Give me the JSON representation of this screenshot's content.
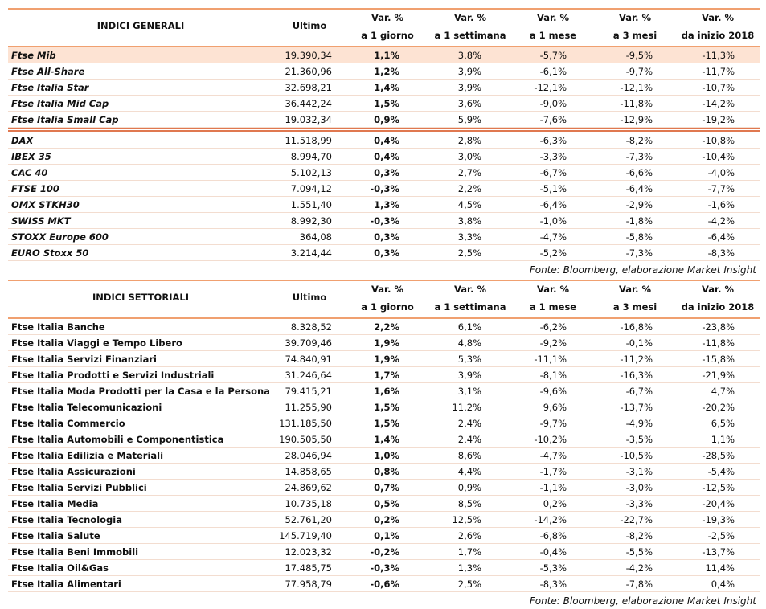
{
  "tables": [
    {
      "header": [
        [
          "INDICI GENERALI"
        ],
        [
          "Ultimo"
        ],
        [
          "Var. %",
          "a 1 giorno"
        ],
        [
          "Var. %",
          "a 1 settimana"
        ],
        [
          "Var. %",
          "a 1 mese"
        ],
        [
          "Var. %",
          "a 3 mesi"
        ],
        [
          "Var. %",
          "da inizio 2018"
        ]
      ],
      "sections": [
        [
          [
            "Ftse Mib",
            "19.390,34",
            "1,1%",
            "3,8%",
            "-5,7%",
            "-9,5%",
            "-11,3%"
          ],
          [
            "Ftse All-Share",
            "21.360,96",
            "1,2%",
            "3,9%",
            "-6,1%",
            "-9,7%",
            "-11,7%"
          ],
          [
            "Ftse Italia Star",
            "32.698,21",
            "1,4%",
            "3,9%",
            "-12,1%",
            "-12,1%",
            "-10,7%"
          ],
          [
            "Ftse Italia Mid Cap",
            "36.442,24",
            "1,5%",
            "3,6%",
            "-9,0%",
            "-11,8%",
            "-14,2%"
          ],
          [
            "Ftse Italia Small Cap",
            "19.032,34",
            "0,9%",
            "5,9%",
            "-7,6%",
            "-12,9%",
            "-19,2%"
          ]
        ],
        [
          [
            "DAX",
            "11.518,99",
            "0,4%",
            "2,8%",
            "-6,3%",
            "-8,2%",
            "-10,8%"
          ],
          [
            "IBEX 35",
            "8.994,70",
            "0,4%",
            "3,0%",
            "-3,3%",
            "-7,3%",
            "-10,4%"
          ],
          [
            "CAC 40",
            "5.102,13",
            "0,3%",
            "2,7%",
            "-6,7%",
            "-6,6%",
            "-4,0%"
          ],
          [
            "FTSE 100",
            "7.094,12",
            "-0,3%",
            "2,2%",
            "-5,1%",
            "-6,4%",
            "-7,7%"
          ],
          [
            "OMX STKH30",
            "1.551,40",
            "1,3%",
            "4,5%",
            "-6,4%",
            "-2,9%",
            "-1,6%"
          ],
          [
            "SWISS MKT",
            "8.992,30",
            "-0,3%",
            "3,8%",
            "-1,0%",
            "-1,8%",
            "-4,2%"
          ],
          [
            "STOXX Europe 600",
            "364,08",
            "0,3%",
            "3,3%",
            "-4,7%",
            "-5,8%",
            "-6,4%"
          ],
          [
            "EURO Stoxx 50",
            "3.214,44",
            "0,3%",
            "2,5%",
            "-5,2%",
            "-7,3%",
            "-8,3%"
          ]
        ]
      ],
      "source": "Fonte: Bloomberg, elaborazione Market Insight"
    },
    {
      "header": [
        [
          "INDICI SETTORIALI"
        ],
        [
          "Ultimo"
        ],
        [
          "Var. %",
          "a 1 giorno"
        ],
        [
          "Var. %",
          "a 1 settimana"
        ],
        [
          "Var. %",
          "a 1 mese"
        ],
        [
          "Var. %",
          "a 3 mesi"
        ],
        [
          "Var. %",
          "da inizio 2018"
        ]
      ],
      "sections": [
        [
          [
            "Ftse Italia Banche",
            "8.328,52",
            "2,2%",
            "6,1%",
            "-6,2%",
            "-16,8%",
            "-23,8%"
          ],
          [
            "Ftse Italia Viaggi e Tempo Libero",
            "39.709,46",
            "1,9%",
            "4,8%",
            "-9,2%",
            "-0,1%",
            "-11,8%"
          ],
          [
            "Ftse Italia Servizi Finanziari",
            "74.840,91",
            "1,9%",
            "5,3%",
            "-11,1%",
            "-11,2%",
            "-15,8%"
          ],
          [
            "Ftse Italia Prodotti e Servizi Industriali",
            "31.246,64",
            "1,7%",
            "3,9%",
            "-8,1%",
            "-16,3%",
            "-21,9%"
          ],
          [
            "Ftse Italia Moda Prodotti per la Casa e la Persona",
            "79.415,21",
            "1,6%",
            "3,1%",
            "-9,6%",
            "-6,7%",
            "4,7%"
          ],
          [
            "Ftse Italia Telecomunicazioni",
            "11.255,90",
            "1,5%",
            "11,2%",
            "9,6%",
            "-13,7%",
            "-20,2%"
          ],
          [
            "Ftse Italia Commercio",
            "131.185,50",
            "1,5%",
            "2,4%",
            "-9,7%",
            "-4,9%",
            "6,5%"
          ],
          [
            "Ftse Italia Automobili e Componentistica",
            "190.505,50",
            "1,4%",
            "2,4%",
            "-10,2%",
            "-3,5%",
            "1,1%"
          ],
          [
            "Ftse Italia Edilizia e Materiali",
            "28.046,94",
            "1,0%",
            "8,6%",
            "-4,7%",
            "-10,5%",
            "-28,5%"
          ],
          [
            "Ftse Italia Assicurazioni",
            "14.858,65",
            "0,8%",
            "4,4%",
            "-1,7%",
            "-3,1%",
            "-5,4%"
          ],
          [
            "Ftse Italia Servizi Pubblici",
            "24.869,62",
            "0,7%",
            "0,9%",
            "-1,1%",
            "-3,0%",
            "-12,5%"
          ],
          [
            "Ftse Italia Media",
            "10.735,18",
            "0,5%",
            "8,5%",
            "0,2%",
            "-3,3%",
            "-20,4%"
          ],
          [
            "Ftse Italia Tecnologia",
            "52.761,20",
            "0,2%",
            "12,5%",
            "-14,2%",
            "-22,7%",
            "-19,3%"
          ],
          [
            "Ftse Italia Salute",
            "145.719,40",
            "0,1%",
            "2,6%",
            "-6,8%",
            "-8,2%",
            "-2,5%"
          ],
          [
            "Ftse Italia Beni Immobili",
            "12.023,32",
            "-0,2%",
            "1,7%",
            "-0,4%",
            "-5,5%",
            "-13,7%"
          ],
          [
            "Ftse Italia Oil&Gas",
            "17.485,75",
            "-0,3%",
            "1,3%",
            "-5,3%",
            "-4,2%",
            "11,4%"
          ],
          [
            "Ftse Italia Alimentari",
            "77.958,79",
            "-0,6%",
            "2,5%",
            "-8,3%",
            "-7,8%",
            "0,4%"
          ]
        ]
      ],
      "source": "Fonte: Bloomberg, elaborazione Market Insight"
    }
  ]
}
